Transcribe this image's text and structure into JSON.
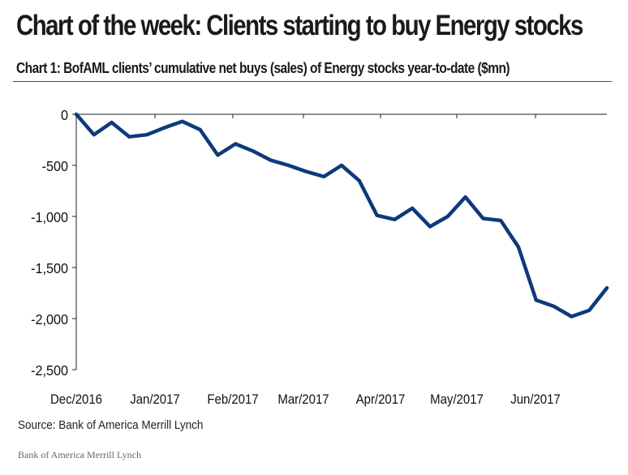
{
  "chart_data": {
    "type": "line",
    "title": "Chart of the week: Clients starting to buy Energy stocks",
    "subtitle": "Chart 1: BofAML clients’ cumulative net buys (sales) of Energy stocks year-to-date ($mn)",
    "xlabel": "",
    "ylabel": "",
    "ylim": [
      -2500,
      0
    ],
    "yticks": [
      0,
      -500,
      -1000,
      -1500,
      -2000,
      -2500
    ],
    "ytick_labels": [
      "0",
      "-500",
      "-1,000",
      "-1,500",
      "-2,000",
      "-2,500"
    ],
    "x_tick_labels": [
      "Dec/2016",
      "Jan/2017",
      "Feb/2017",
      "Mar/2017",
      "Apr/2017",
      "May/2017",
      "Jun/2017"
    ],
    "grid": false,
    "line_color": "#0d3a7a",
    "series": [
      {
        "name": "",
        "values": [
          0,
          -200,
          -80,
          -220,
          -200,
          -130,
          -70,
          -150,
          -400,
          -290,
          -360,
          -450,
          -500,
          -560,
          -610,
          -500,
          -650,
          -990,
          -1030,
          -920,
          -1100,
          -1000,
          -810,
          -1020,
          -1040,
          -1300,
          -1820,
          -1880,
          -1980,
          -1920,
          -1700
        ]
      }
    ]
  },
  "source": "Source: Bank of America Merrill Lynch",
  "credit": "Bank of America Merrill Lynch"
}
